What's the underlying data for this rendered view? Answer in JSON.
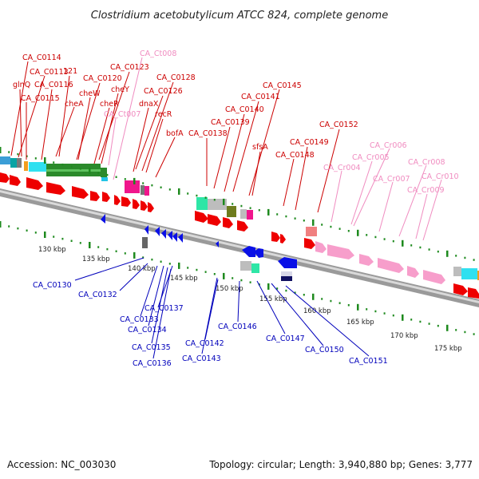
{
  "title": "Clostridium acetobutylicum ATCC 824, complete genome",
  "footer": {
    "accession": "Accession: NC_003030",
    "summary": "Topology: circular; Length: 3,940,880 bp; Genes: 3,777"
  },
  "colors": {
    "plus_label": "#cc0000",
    "rna_label": "#f08cc0",
    "minus_label": "#0000bb",
    "plus_gene": "#ee0000",
    "minus_gene": "#0a10e6",
    "rna_gene": "#f79ecb",
    "tick": "#1e8a1e",
    "backbone": "#9a9a9a"
  },
  "kbp_labels": [
    "130 kbp",
    "135 kbp",
    "140 kbp",
    "145 kbp",
    "150 kbp",
    "155 kbp",
    "160 kbp",
    "165 kbp",
    "170 kbp",
    "175 kbp"
  ],
  "plus_labels": [
    "CA_C0114",
    "CA_C0113",
    "121",
    "glnQ",
    "CA_C0116",
    "CA_C0115",
    "cheA",
    "CA_C0123",
    "CA_C0120",
    "cheW",
    "cheY",
    "cheR",
    "CA_C0128",
    "CA_C0126",
    "dnaX",
    "recR",
    "bofA",
    "CA_C0145",
    "CA_C0141",
    "CA_C0140",
    "CA_C0139",
    "CA_C0138",
    "sfsA",
    "CA_C0152",
    "CA_C0149",
    "CA_C0148"
  ],
  "rna_labels": [
    "CA_Ct008",
    "CA_Ct007",
    "CA_Cr006",
    "CA_Cr005",
    "CA_Cr004",
    "CA_Cr008",
    "CA_Cr007",
    "CA_Cr010",
    "CA_Cr009"
  ],
  "minus_labels": [
    "CA_C0130",
    "CA_C0132",
    "CA_C0137",
    "CA_C0133",
    "CA_C0134",
    "CA_C0135",
    "CA_C0136",
    "CA_C0142",
    "CA_C0143",
    "CA_C0146",
    "CA_C0147",
    "CA_C0150",
    "CA_C0151"
  ]
}
